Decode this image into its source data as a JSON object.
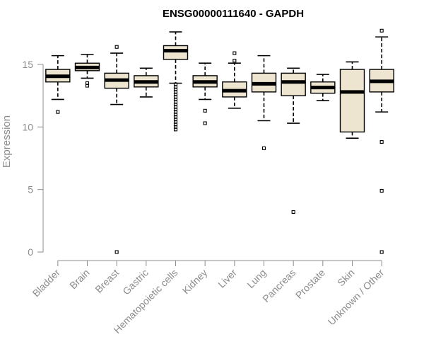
{
  "chart_data": {
    "type": "boxplot",
    "title": "ENSG00000111640 - GAPDH",
    "xlabel": "",
    "ylabel": "Expression",
    "ylim": [
      0,
      18
    ],
    "yticks": [
      0,
      5,
      10,
      15
    ],
    "grid": false,
    "legend": "none",
    "colors": {
      "box_fill": "#ede5cf",
      "stroke": "#000000",
      "axis_text": "#8c8c8c"
    },
    "categories": [
      "Bladder",
      "Brain",
      "Breast",
      "Gastric",
      "Hematopoietic cells",
      "Kidney",
      "Liver",
      "Lung",
      "Pancreas",
      "Prostate",
      "Skin",
      "Unknown / Other"
    ],
    "boxes": [
      {
        "category": "Bladder",
        "whisker_low": 12.2,
        "q1": 13.6,
        "median": 14.05,
        "q3": 14.6,
        "whisker_high": 15.7,
        "outliers": [
          11.2
        ]
      },
      {
        "category": "Brain",
        "whisker_low": 13.9,
        "q1": 14.5,
        "median": 14.75,
        "q3": 15.1,
        "whisker_high": 15.8,
        "outliers": [
          13.5,
          13.3
        ]
      },
      {
        "category": "Breast",
        "whisker_low": 11.8,
        "q1": 13.1,
        "median": 13.75,
        "q3": 14.3,
        "whisker_high": 15.9,
        "outliers": [
          16.4,
          0.0
        ]
      },
      {
        "category": "Gastric",
        "whisker_low": 12.4,
        "q1": 13.2,
        "median": 13.6,
        "q3": 14.1,
        "whisker_high": 14.7,
        "outliers": []
      },
      {
        "category": "Hematopoietic cells",
        "whisker_low": 13.5,
        "q1": 15.4,
        "median": 16.1,
        "q3": 16.5,
        "whisker_high": 17.6,
        "outliers": [
          13.4,
          13.2,
          13.0,
          12.8,
          12.6,
          12.4,
          12.2,
          12.0,
          11.8,
          11.6,
          11.4,
          11.2,
          11.0,
          10.8,
          10.6,
          10.4,
          10.2,
          10.0,
          9.8
        ]
      },
      {
        "category": "Kidney",
        "whisker_low": 12.2,
        "q1": 13.2,
        "median": 13.6,
        "q3": 14.1,
        "whisker_high": 15.1,
        "outliers": [
          11.3,
          10.3
        ]
      },
      {
        "category": "Liver",
        "whisker_low": 11.5,
        "q1": 12.4,
        "median": 12.9,
        "q3": 13.6,
        "whisker_high": 15.1,
        "outliers": [
          15.3,
          15.9
        ]
      },
      {
        "category": "Lung",
        "whisker_low": 10.5,
        "q1": 12.8,
        "median": 13.45,
        "q3": 14.3,
        "whisker_high": 15.7,
        "outliers": [
          8.3
        ]
      },
      {
        "category": "Pancreas",
        "whisker_low": 10.3,
        "q1": 12.5,
        "median": 13.6,
        "q3": 14.3,
        "whisker_high": 14.7,
        "outliers": [
          3.2
        ]
      },
      {
        "category": "Prostate",
        "whisker_low": 12.1,
        "q1": 12.7,
        "median": 13.15,
        "q3": 13.6,
        "whisker_high": 14.2,
        "outliers": []
      },
      {
        "category": "Skin",
        "whisker_low": 9.1,
        "q1": 9.6,
        "median": 12.8,
        "q3": 14.6,
        "whisker_high": 15.2,
        "outliers": []
      },
      {
        "category": "Unknown / Other",
        "whisker_low": 11.2,
        "q1": 12.8,
        "median": 13.65,
        "q3": 14.6,
        "whisker_high": 17.2,
        "outliers": [
          17.7,
          8.8,
          4.9,
          0.0
        ]
      }
    ]
  }
}
